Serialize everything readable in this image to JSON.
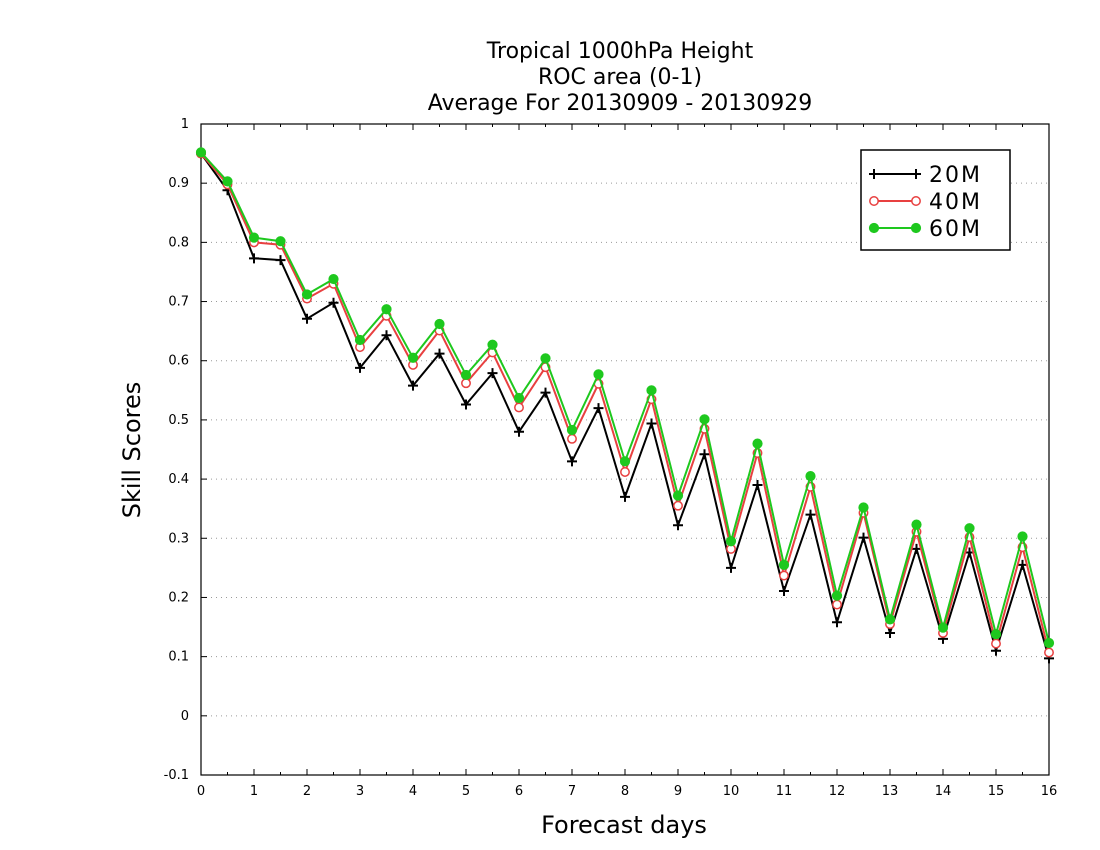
{
  "chart_data": {
    "type": "line",
    "title_lines": [
      "Tropical 1000hPa Height",
      "ROC area (0-1)",
      "Average For 20130909 - 20130929"
    ],
    "xlabel": "Forecast days",
    "ylabel": "Skill Scores",
    "xlim": [
      0,
      16
    ],
    "ylim": [
      -0.1,
      1
    ],
    "x_ticks": [
      "0",
      "1",
      "2",
      "3",
      "4",
      "5",
      "6",
      "7",
      "8",
      "9",
      "10",
      "11",
      "12",
      "13",
      "14",
      "15",
      "16"
    ],
    "y_ticks": [
      "-0.1",
      "0",
      "0.1",
      "0.2",
      "0.3",
      "0.4",
      "0.5",
      "0.6",
      "0.7",
      "0.8",
      "0.9",
      "1"
    ],
    "grid": true,
    "legend_position": "top-right",
    "x": [
      0,
      0.5,
      1,
      1.5,
      2,
      2.5,
      3,
      3.5,
      4,
      4.5,
      5,
      5.5,
      6,
      6.5,
      7,
      7.5,
      8,
      8.5,
      9,
      9.5,
      10,
      10.5,
      11,
      11.5,
      12,
      12.5,
      13,
      13.5,
      14,
      14.5,
      15,
      15.5,
      16
    ],
    "series": [
      {
        "name": "20M",
        "color": "#000000",
        "marker": "plus",
        "values": [
          0.95,
          0.888,
          0.773,
          0.77,
          0.671,
          0.698,
          0.588,
          0.643,
          0.558,
          0.612,
          0.526,
          0.579,
          0.48,
          0.546,
          0.43,
          0.52,
          0.37,
          0.494,
          0.322,
          0.442,
          0.25,
          0.39,
          0.211,
          0.34,
          0.158,
          0.301,
          0.14,
          0.282,
          0.13,
          0.276,
          0.11,
          0.255,
          0.097
        ]
      },
      {
        "name": "40M",
        "color": "#e84040",
        "marker": "open-circle",
        "values": [
          0.95,
          0.898,
          0.8,
          0.796,
          0.705,
          0.73,
          0.623,
          0.676,
          0.593,
          0.651,
          0.562,
          0.614,
          0.521,
          0.589,
          0.468,
          0.561,
          0.412,
          0.535,
          0.355,
          0.485,
          0.282,
          0.444,
          0.237,
          0.387,
          0.188,
          0.343,
          0.155,
          0.311,
          0.14,
          0.302,
          0.122,
          0.285,
          0.107
        ]
      },
      {
        "name": "60M",
        "color": "#1ec81e",
        "marker": "filled-circle",
        "values": [
          0.952,
          0.903,
          0.808,
          0.802,
          0.712,
          0.738,
          0.635,
          0.687,
          0.605,
          0.662,
          0.576,
          0.627,
          0.537,
          0.604,
          0.483,
          0.577,
          0.43,
          0.55,
          0.372,
          0.501,
          0.295,
          0.46,
          0.255,
          0.405,
          0.203,
          0.352,
          0.163,
          0.323,
          0.149,
          0.317,
          0.138,
          0.303,
          0.123
        ]
      }
    ]
  }
}
